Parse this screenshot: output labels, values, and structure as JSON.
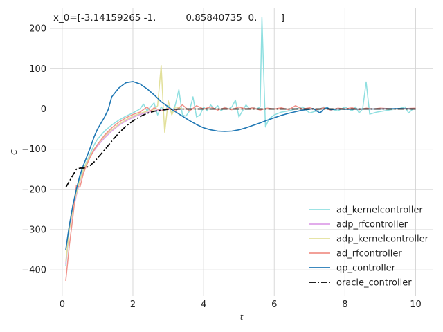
{
  "chart_data": {
    "type": "line",
    "title": "",
    "annotation": "x_0=[-3.14159265 -1.          0.85840735  0.        ]",
    "xlabel": "t",
    "ylabel": "Ċ",
    "xlim": [
      -0.35,
      10.5
    ],
    "ylim": [
      -465,
      250
    ],
    "xticks": [
      0,
      2,
      4,
      6,
      8,
      10
    ],
    "xtick_labels": [
      "0",
      "2",
      "4",
      "6",
      "8",
      "10"
    ],
    "yticks": [
      -400,
      -300,
      -200,
      -100,
      0,
      100,
      200
    ],
    "ytick_labels": [
      "−400",
      "−300",
      "−200",
      "−100",
      "0",
      "100",
      "200"
    ],
    "grid": true,
    "legend_position": "lower-right",
    "series": [
      {
        "name": "ad_kernelcontroller",
        "color": "#8fdfe0",
        "dash": "solid",
        "points": [
          [
            0.1,
            -390
          ],
          [
            0.2,
            -300
          ],
          [
            0.3,
            -250
          ],
          [
            0.4,
            -200
          ],
          [
            0.5,
            -170
          ],
          [
            0.6,
            -150
          ],
          [
            0.7,
            -130
          ],
          [
            0.8,
            -110
          ],
          [
            0.9,
            -90
          ],
          [
            1.0,
            -75
          ],
          [
            1.2,
            -55
          ],
          [
            1.4,
            -40
          ],
          [
            1.6,
            -28
          ],
          [
            1.8,
            -18
          ],
          [
            2.0,
            -10
          ],
          [
            2.2,
            0
          ],
          [
            2.3,
            12
          ],
          [
            2.4,
            -5
          ],
          [
            2.5,
            5
          ],
          [
            2.6,
            15
          ],
          [
            2.7,
            -15
          ],
          [
            2.8,
            5
          ],
          [
            2.9,
            -5
          ],
          [
            3.0,
            8
          ],
          [
            3.1,
            -10
          ],
          [
            3.2,
            10
          ],
          [
            3.3,
            48
          ],
          [
            3.4,
            -15
          ],
          [
            3.5,
            -18
          ],
          [
            3.6,
            -5
          ],
          [
            3.7,
            30
          ],
          [
            3.8,
            -20
          ],
          [
            3.9,
            -15
          ],
          [
            4.0,
            5
          ],
          [
            4.1,
            -5
          ],
          [
            4.2,
            10
          ],
          [
            4.3,
            0
          ],
          [
            4.4,
            8
          ],
          [
            4.5,
            -5
          ],
          [
            4.6,
            5
          ],
          [
            4.7,
            0
          ],
          [
            4.8,
            5
          ],
          [
            4.9,
            22
          ],
          [
            5.0,
            -20
          ],
          [
            5.1,
            -5
          ],
          [
            5.2,
            10
          ],
          [
            5.3,
            0
          ],
          [
            5.4,
            5
          ],
          [
            5.5,
            0
          ],
          [
            5.6,
            5
          ],
          [
            5.65,
            228
          ],
          [
            5.75,
            -45
          ],
          [
            5.85,
            -25
          ],
          [
            6.0,
            -15
          ],
          [
            6.2,
            -8
          ],
          [
            6.4,
            -5
          ],
          [
            6.6,
            0
          ],
          [
            6.8,
            5
          ],
          [
            7.0,
            -10
          ],
          [
            7.2,
            -5
          ],
          [
            7.4,
            5
          ],
          [
            7.6,
            0
          ],
          [
            7.8,
            -5
          ],
          [
            8.0,
            5
          ],
          [
            8.1,
            0
          ],
          [
            8.2,
            -5
          ],
          [
            8.3,
            5
          ],
          [
            8.4,
            -10
          ],
          [
            8.5,
            0
          ],
          [
            8.6,
            67
          ],
          [
            8.7,
            -13
          ],
          [
            8.9,
            -8
          ],
          [
            9.1,
            -5
          ],
          [
            9.3,
            -2
          ],
          [
            9.5,
            0
          ],
          [
            9.7,
            5
          ],
          [
            9.8,
            -10
          ],
          [
            9.9,
            -2
          ],
          [
            10.0,
            2
          ]
        ]
      },
      {
        "name": "adp_rfcontroller",
        "color": "#dea0e8",
        "dash": "solid",
        "points": [
          [
            0.1,
            -385
          ],
          [
            0.2,
            -300
          ],
          [
            0.3,
            -255
          ],
          [
            0.4,
            -215
          ],
          [
            0.5,
            -180
          ],
          [
            0.6,
            -155
          ],
          [
            0.7,
            -135
          ],
          [
            0.8,
            -118
          ],
          [
            0.9,
            -104
          ],
          [
            1.0,
            -92
          ],
          [
            1.2,
            -72
          ],
          [
            1.4,
            -55
          ],
          [
            1.6,
            -41
          ],
          [
            1.8,
            -30
          ],
          [
            2.0,
            -21
          ],
          [
            2.2,
            -14
          ],
          [
            2.4,
            -9
          ],
          [
            2.6,
            -5
          ],
          [
            2.8,
            -3
          ],
          [
            3.0,
            -1
          ],
          [
            3.5,
            0
          ],
          [
            4.0,
            0
          ],
          [
            5.0,
            0
          ],
          [
            6.0,
            0
          ],
          [
            7.0,
            0
          ],
          [
            8.0,
            0
          ],
          [
            9.0,
            0
          ],
          [
            10.0,
            0
          ]
        ]
      },
      {
        "name": "adp_kernelcontroller",
        "color": "#e2e09a",
        "dash": "solid",
        "points": [
          [
            0.1,
            -380
          ],
          [
            0.2,
            -300
          ],
          [
            0.3,
            -250
          ],
          [
            0.4,
            -210
          ],
          [
            0.5,
            -178
          ],
          [
            0.6,
            -152
          ],
          [
            0.7,
            -132
          ],
          [
            0.8,
            -115
          ],
          [
            0.9,
            -100
          ],
          [
            1.0,
            -88
          ],
          [
            1.2,
            -68
          ],
          [
            1.4,
            -52
          ],
          [
            1.6,
            -38
          ],
          [
            1.8,
            -27
          ],
          [
            2.0,
            -18
          ],
          [
            2.2,
            -11
          ],
          [
            2.4,
            -6
          ],
          [
            2.6,
            -2
          ],
          [
            2.7,
            8
          ],
          [
            2.8,
            108
          ],
          [
            2.85,
            20
          ],
          [
            2.9,
            -58
          ],
          [
            3.0,
            20
          ],
          [
            3.1,
            -15
          ],
          [
            3.2,
            5
          ],
          [
            3.4,
            0
          ],
          [
            4.0,
            0
          ],
          [
            5.0,
            0
          ],
          [
            6.0,
            0
          ],
          [
            7.0,
            0
          ],
          [
            8.0,
            0
          ],
          [
            9.0,
            0
          ],
          [
            10.0,
            0
          ]
        ]
      },
      {
        "name": "ad_rfcontroller",
        "color": "#f0928a",
        "dash": "solid",
        "points": [
          [
            0.1,
            -427
          ],
          [
            0.2,
            -340
          ],
          [
            0.3,
            -270
          ],
          [
            0.4,
            -190
          ],
          [
            0.5,
            -195
          ],
          [
            0.6,
            -160
          ],
          [
            0.7,
            -138
          ],
          [
            0.8,
            -118
          ],
          [
            0.9,
            -102
          ],
          [
            1.0,
            -88
          ],
          [
            1.2,
            -65
          ],
          [
            1.4,
            -47
          ],
          [
            1.6,
            -33
          ],
          [
            1.8,
            -22
          ],
          [
            2.0,
            -14
          ],
          [
            2.2,
            -8
          ],
          [
            2.4,
            5
          ],
          [
            2.5,
            -5
          ],
          [
            2.6,
            3
          ],
          [
            2.8,
            -5
          ],
          [
            3.0,
            2
          ],
          [
            3.2,
            -5
          ],
          [
            3.4,
            10
          ],
          [
            3.6,
            -5
          ],
          [
            3.8,
            8
          ],
          [
            4.0,
            0
          ],
          [
            4.2,
            5
          ],
          [
            4.4,
            -3
          ],
          [
            4.6,
            3
          ],
          [
            4.8,
            -2
          ],
          [
            5.0,
            5
          ],
          [
            5.2,
            0
          ],
          [
            5.4,
            3
          ],
          [
            5.6,
            -3
          ],
          [
            5.8,
            2
          ],
          [
            6.0,
            0
          ],
          [
            6.2,
            3
          ],
          [
            6.4,
            -2
          ],
          [
            6.6,
            8
          ],
          [
            6.8,
            0
          ],
          [
            7.0,
            3
          ],
          [
            7.2,
            -2
          ],
          [
            7.4,
            3
          ],
          [
            7.6,
            -3
          ],
          [
            7.8,
            2
          ],
          [
            8.0,
            0
          ],
          [
            8.2,
            3
          ],
          [
            8.4,
            -2
          ],
          [
            8.6,
            2
          ],
          [
            8.8,
            0
          ],
          [
            9.0,
            2
          ],
          [
            9.4,
            0
          ],
          [
            10.0,
            2
          ]
        ]
      },
      {
        "name": "qp_controller",
        "color": "#1f77b4",
        "dash": "solid",
        "points": [
          [
            0.1,
            -350
          ],
          [
            0.2,
            -290
          ],
          [
            0.3,
            -240
          ],
          [
            0.4,
            -200
          ],
          [
            0.5,
            -165
          ],
          [
            0.6,
            -140
          ],
          [
            0.7,
            -118
          ],
          [
            0.8,
            -95
          ],
          [
            0.9,
            -70
          ],
          [
            1.0,
            -50
          ],
          [
            1.1,
            -35
          ],
          [
            1.2,
            -20
          ],
          [
            1.3,
            -2
          ],
          [
            1.4,
            30
          ],
          [
            1.6,
            52
          ],
          [
            1.8,
            65
          ],
          [
            2.0,
            68
          ],
          [
            2.2,
            62
          ],
          [
            2.4,
            50
          ],
          [
            2.6,
            35
          ],
          [
            2.8,
            18
          ],
          [
            3.0,
            5
          ],
          [
            3.2,
            -7
          ],
          [
            3.4,
            -18
          ],
          [
            3.6,
            -29
          ],
          [
            3.8,
            -39
          ],
          [
            4.0,
            -47
          ],
          [
            4.2,
            -52
          ],
          [
            4.4,
            -55
          ],
          [
            4.6,
            -56
          ],
          [
            4.8,
            -55
          ],
          [
            5.0,
            -52
          ],
          [
            5.2,
            -47
          ],
          [
            5.4,
            -41
          ],
          [
            5.6,
            -35
          ],
          [
            5.8,
            -28
          ],
          [
            6.0,
            -22
          ],
          [
            6.2,
            -16
          ],
          [
            6.4,
            -11
          ],
          [
            6.6,
            -7
          ],
          [
            6.8,
            -3
          ],
          [
            7.0,
            -1
          ],
          [
            7.1,
            1
          ],
          [
            7.2,
            -5
          ],
          [
            7.3,
            -10
          ],
          [
            7.4,
            0
          ],
          [
            7.5,
            3
          ],
          [
            7.6,
            -2
          ],
          [
            7.8,
            0
          ],
          [
            8.0,
            -1
          ],
          [
            8.5,
            0
          ],
          [
            9.0,
            0
          ],
          [
            9.5,
            1
          ],
          [
            10.0,
            0
          ]
        ]
      },
      {
        "name": "oracle_controller",
        "color": "#000000",
        "dash": "dashdot",
        "points": [
          [
            0.1,
            -195
          ],
          [
            0.2,
            -180
          ],
          [
            0.3,
            -165
          ],
          [
            0.4,
            -150
          ],
          [
            0.5,
            -147
          ],
          [
            0.6,
            -147
          ],
          [
            0.7,
            -145
          ],
          [
            0.8,
            -140
          ],
          [
            0.9,
            -132
          ],
          [
            1.0,
            -122
          ],
          [
            1.2,
            -102
          ],
          [
            1.4,
            -80
          ],
          [
            1.6,
            -60
          ],
          [
            1.8,
            -43
          ],
          [
            2.0,
            -30
          ],
          [
            2.2,
            -19
          ],
          [
            2.4,
            -11
          ],
          [
            2.6,
            -6
          ],
          [
            2.8,
            -3
          ],
          [
            3.0,
            -1
          ],
          [
            3.5,
            0
          ],
          [
            4.0,
            0
          ],
          [
            5.0,
            0
          ],
          [
            6.0,
            0
          ],
          [
            7.0,
            0
          ],
          [
            8.0,
            0
          ],
          [
            9.0,
            0
          ],
          [
            10.0,
            0
          ]
        ]
      }
    ]
  }
}
